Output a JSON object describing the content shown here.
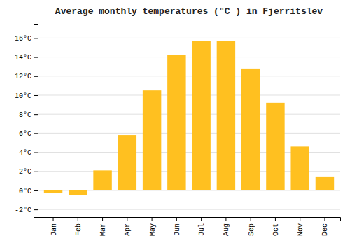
{
  "chart_data": {
    "type": "bar",
    "title": "Average monthly temperatures (°C ) in Fjerritslev",
    "categories": [
      "Jan",
      "Feb",
      "Mar",
      "Apr",
      "May",
      "Jun",
      "Jul",
      "Aug",
      "Sep",
      "Oct",
      "Nov",
      "Dec"
    ],
    "values": [
      -0.3,
      -0.5,
      2.1,
      5.8,
      10.5,
      14.2,
      15.7,
      15.7,
      12.8,
      9.2,
      4.6,
      1.4
    ],
    "color": "#FFC020",
    "ylim": [
      -2.8,
      17.5
    ],
    "yticks": [
      {
        "value": -2,
        "label": "-2°C"
      },
      {
        "value": 0,
        "label": "0°C"
      },
      {
        "value": 2,
        "label": "2°C"
      },
      {
        "value": 4,
        "label": "4°C"
      },
      {
        "value": 6,
        "label": "6°C"
      },
      {
        "value": 8,
        "label": "8°C"
      },
      {
        "value": 10,
        "label": "10°C"
      },
      {
        "value": 12,
        "label": "12°C"
      },
      {
        "value": 14,
        "label": "14°C"
      },
      {
        "value": 16,
        "label": "16°C"
      }
    ],
    "grid": true
  }
}
